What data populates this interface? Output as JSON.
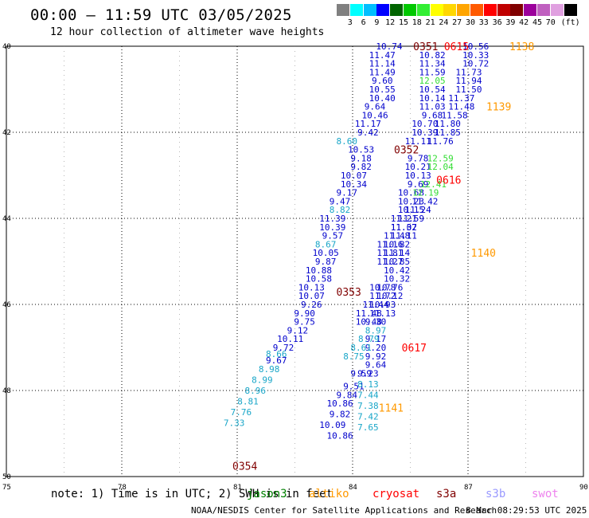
{
  "header": {
    "title": "00:00 — 11:59 UTC 03/05/2025",
    "subtitle": "12 hour collection of altimeter wave heights"
  },
  "scale": {
    "colors": [
      "#808080",
      "#00ffff",
      "#00bfff",
      "#0000ff",
      "#006400",
      "#00c800",
      "#33ee33",
      "#ffff00",
      "#ffd700",
      "#ffa500",
      "#ff5a00",
      "#ff0000",
      "#c00000",
      "#800000",
      "#9c009c",
      "#c060c0",
      "#e0a0e0",
      "#000000"
    ],
    "labels": [
      "3",
      "6",
      "9",
      "12",
      "15",
      "18",
      "21",
      "24",
      "27",
      "30",
      "33",
      "36",
      "39",
      "42",
      "45",
      "70",
      "(ft)"
    ]
  },
  "axes": {
    "lat_ticks": [
      "40",
      "42",
      "44",
      "46",
      "48",
      "50"
    ],
    "lon_ticks": [
      "75",
      "78",
      "81",
      "84",
      "87",
      "90"
    ]
  },
  "tracks": [
    {
      "color": "#0000cc",
      "points": [
        [
          "10.74",
          84.95,
          40.0
        ],
        [
          "11.47",
          84.77,
          40.2
        ],
        [
          "11.14",
          84.77,
          40.4
        ],
        [
          "11.49",
          84.77,
          40.6
        ],
        [
          "9.60",
          84.77,
          40.8
        ],
        [
          "10.55",
          84.77,
          41.0
        ],
        [
          "10.40",
          84.77,
          41.2
        ],
        [
          "9.64",
          84.58,
          41.4
        ],
        [
          "10.46",
          84.58,
          41.6
        ],
        [
          "11.17",
          84.4,
          41.8
        ],
        [
          "9.42",
          84.4,
          42.0
        ],
        [
          "10.53",
          84.22,
          42.4
        ],
        [
          "9.18",
          84.22,
          42.6
        ],
        [
          "9.82",
          84.22,
          42.8
        ],
        [
          "10.07",
          84.03,
          43.0
        ],
        [
          "10.34",
          84.03,
          43.2
        ],
        [
          "9.17",
          83.85,
          43.4
        ],
        [
          "9.47",
          83.67,
          43.6
        ],
        [
          "11.39",
          83.48,
          44.0
        ],
        [
          "10.39",
          83.48,
          44.2
        ],
        [
          "9.57",
          83.48,
          44.4
        ],
        [
          "10.05",
          83.3,
          44.8
        ],
        [
          "9.87",
          83.3,
          45.0
        ],
        [
          "10.88",
          83.12,
          45.2
        ],
        [
          "10.58",
          83.12,
          45.4
        ],
        [
          "10.13",
          82.93,
          45.6
        ],
        [
          "10.07",
          82.93,
          45.8
        ],
        [
          "9.26",
          82.93,
          46.0
        ],
        [
          "9.90",
          82.75,
          46.2
        ],
        [
          "9.75",
          82.75,
          46.4
        ],
        [
          "9.12",
          82.57,
          46.6
        ],
        [
          "10.11",
          82.38,
          46.8
        ],
        [
          "9.72",
          82.2,
          47.0
        ],
        [
          "9.67",
          82.02,
          47.3
        ],
        [
          "10.86",
          83.67,
          48.3
        ],
        [
          "9.84",
          83.85,
          48.1
        ],
        [
          "9.51",
          84.03,
          47.9
        ],
        [
          "9.59",
          84.22,
          47.6
        ],
        [
          "9.82",
          83.67,
          48.55
        ],
        [
          "10.09",
          83.48,
          48.8
        ],
        [
          "10.86",
          83.67,
          49.05
        ]
      ]
    },
    {
      "color": "#0000cc",
      "points": [
        [
          "10.82",
          86.07,
          40.2
        ],
        [
          "11.34",
          86.07,
          40.4
        ],
        [
          "11.59",
          86.07,
          40.6
        ],
        [
          "10.54",
          86.07,
          41.0
        ],
        [
          "10.14",
          86.07,
          41.2
        ],
        [
          "11.03",
          86.07,
          41.4
        ],
        [
          "9.68",
          86.07,
          41.6
        ],
        [
          "10.70",
          85.88,
          41.8
        ],
        [
          "10.39",
          85.88,
          42.0
        ],
        [
          "11.11",
          85.7,
          42.2
        ],
        [
          "9.78",
          85.7,
          42.6
        ],
        [
          "10.21",
          85.7,
          42.8
        ],
        [
          "10.13",
          85.7,
          43.0
        ],
        [
          "9.69",
          85.7,
          43.2
        ],
        [
          "10.68",
          85.52,
          43.4
        ],
        [
          "10.23",
          85.52,
          43.6
        ],
        [
          "10.15",
          85.52,
          43.8
        ],
        [
          "11.21",
          85.33,
          44.0
        ],
        [
          "11.02",
          85.33,
          44.2
        ],
        [
          "11.11",
          85.33,
          44.4
        ],
        [
          "10.82",
          85.15,
          44.6
        ],
        [
          "11.14",
          85.15,
          44.8
        ],
        [
          "10.85",
          85.15,
          45.0
        ],
        [
          "10.42",
          85.15,
          45.2
        ],
        [
          "10.32",
          85.15,
          45.4
        ],
        [
          "10.76",
          84.97,
          45.6
        ],
        [
          "10.12",
          84.97,
          45.8
        ],
        [
          "10.93",
          84.78,
          46.0
        ],
        [
          "11.13",
          84.78,
          46.2
        ],
        [
          "9.30",
          84.6,
          46.4
        ],
        [
          "9.17",
          84.6,
          46.8
        ],
        [
          "9.20",
          84.6,
          47.0
        ],
        [
          "9.92",
          84.6,
          47.2
        ],
        [
          "9.64",
          84.6,
          47.4
        ],
        [
          "9.23",
          84.4,
          47.6
        ]
      ]
    },
    {
      "color": "#0000cc",
      "points": [
        [
          "10.56",
          87.2,
          40.0
        ],
        [
          "10.33",
          87.2,
          40.2
        ],
        [
          "10.72",
          87.2,
          40.4
        ],
        [
          "11.73",
          87.02,
          40.6
        ],
        [
          "11.94",
          87.02,
          40.8
        ],
        [
          "11.50",
          87.02,
          41.0
        ],
        [
          "11.37",
          86.83,
          41.2
        ],
        [
          "11.48",
          86.83,
          41.4
        ],
        [
          "11.58",
          86.65,
          41.6
        ],
        [
          "11.80",
          86.47,
          41.8
        ],
        [
          "11.85",
          86.47,
          42.0
        ],
        [
          "11.76",
          86.28,
          42.2
        ],
        [
          "11.42",
          85.88,
          43.6
        ],
        [
          "11.24",
          85.7,
          43.8
        ],
        [
          "11.59",
          85.52,
          44.0
        ],
        [
          "11.37",
          85.33,
          44.2
        ],
        [
          "11.48",
          85.15,
          44.4
        ],
        [
          "11.16",
          84.97,
          44.6
        ],
        [
          "11.81",
          84.97,
          44.8
        ],
        [
          "11.27",
          84.97,
          45.0
        ],
        [
          "10.78",
          84.78,
          45.6
        ],
        [
          "11.72",
          84.78,
          45.8
        ],
        [
          "11.44",
          84.6,
          46.0
        ],
        [
          "11.48",
          84.42,
          46.2
        ],
        [
          "10.48",
          84.42,
          46.4
        ]
      ]
    },
    {
      "color": "#33dd33",
      "points": [
        [
          "12.05",
          86.07,
          40.8
        ],
        [
          "12.59",
          86.28,
          42.6
        ],
        [
          "12.04",
          86.28,
          42.8
        ],
        [
          "12.41",
          86.1,
          43.2
        ],
        [
          "12.19",
          85.9,
          43.4
        ]
      ]
    },
    {
      "color": "#19a6c8",
      "points": [
        [
          "8.60",
          83.85,
          42.2
        ],
        [
          "8.82",
          83.67,
          43.8
        ],
        [
          "8.67",
          83.3,
          44.6
        ],
        [
          "8.97",
          84.6,
          46.6
        ],
        [
          "8.79",
          84.42,
          46.8
        ],
        [
          "8.61",
          84.22,
          47.0
        ],
        [
          "8.75",
          84.03,
          47.2
        ],
        [
          "8.66",
          82.02,
          47.15
        ],
        [
          "8.98",
          81.83,
          47.5
        ],
        [
          "8.99",
          81.65,
          47.75
        ],
        [
          "8.96",
          81.47,
          48.0
        ],
        [
          "8.81",
          81.28,
          48.25
        ],
        [
          "7.76",
          81.1,
          48.5
        ],
        [
          "7.33",
          80.92,
          48.75
        ],
        [
          "8.13",
          84.4,
          47.85
        ],
        [
          "7.44",
          84.4,
          48.1
        ],
        [
          "7.38",
          84.4,
          48.35
        ],
        [
          "7.42",
          84.4,
          48.6
        ],
        [
          "7.65",
          84.4,
          48.85
        ]
      ]
    }
  ],
  "timestamps": [
    {
      "text": "0351",
      "color": "#800000",
      "lon": 85.9,
      "lat": 40.0
    },
    {
      "text": "0615",
      "color": "#ff0000",
      "lon": 86.7,
      "lat": 40.0
    },
    {
      "text": "1138",
      "color": "#ff9900",
      "lon": 88.4,
      "lat": 40.0
    },
    {
      "text": "1139",
      "color": "#ff9900",
      "lon": 87.8,
      "lat": 41.4
    },
    {
      "text": "0352",
      "color": "#800000",
      "lon": 85.4,
      "lat": 42.4
    },
    {
      "text": "0616",
      "color": "#ff0000",
      "lon": 86.5,
      "lat": 43.1
    },
    {
      "text": "1140",
      "color": "#ff9900",
      "lon": 87.4,
      "lat": 44.8
    },
    {
      "text": "0353",
      "color": "#800000",
      "lon": 83.9,
      "lat": 45.7
    },
    {
      "text": "0617",
      "color": "#ff0000",
      "lon": 85.6,
      "lat": 47.0
    },
    {
      "text": "1141",
      "color": "#ff9900",
      "lon": 85.0,
      "lat": 48.4
    },
    {
      "text": "0354",
      "color": "#800000",
      "lon": 81.2,
      "lat": 49.75
    }
  ],
  "notes": {
    "note_text": "note: 1) Time is in UTC; 2) SWH is in feet",
    "satellites": [
      {
        "name": "jason3",
        "color": "#008000"
      },
      {
        "name": "altiko",
        "color": "#ff9900"
      },
      {
        "name": "cryosat",
        "color": "#ff0000"
      },
      {
        "name": "s3a",
        "color": "#800000"
      },
      {
        "name": "s3b",
        "color": "#9999ff"
      },
      {
        "name": "swot",
        "color": "#ee82ee"
      }
    ],
    "footer": "NOAA/NESDIS Center for Satellite Applications and Research",
    "footer_time": "8 Mar 08:29:53 UTC 2025"
  }
}
